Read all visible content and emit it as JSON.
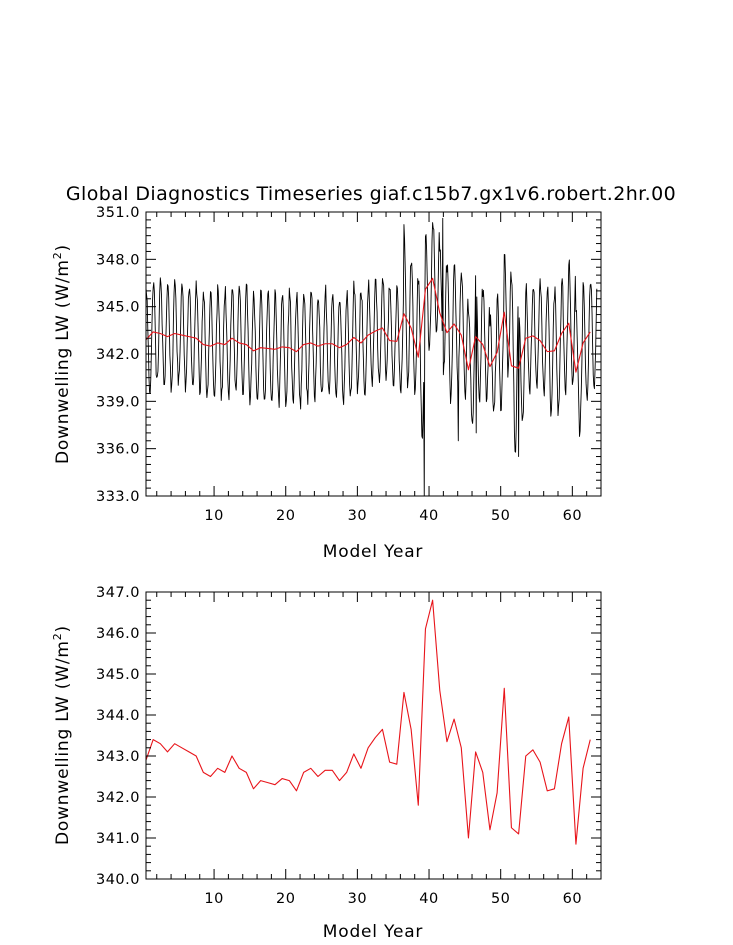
{
  "title": "Global Diagnostics Timeseries giaf.c15b7.gx1v6.robert.2hr.00",
  "colors": {
    "monthly": "#000000",
    "annual": "#e8141a",
    "axes": "#000000",
    "background": "#ffffff"
  },
  "chart_data": [
    {
      "type": "line",
      "title": "Global Diagnostics Timeseries giaf.c15b7.gx1v6.robert.2hr.00",
      "xlabel": "Model Year",
      "ylabel": "Downwelling LW (W/m²)",
      "ylabel_parts": {
        "main": "Downwelling LW (W/m",
        "sup": "2",
        "close": ")"
      },
      "xlim": [
        0.5,
        64
      ],
      "ylim": [
        333.0,
        351.0
      ],
      "x_tick_labels": [
        "10",
        "20",
        "30",
        "40",
        "50",
        "60"
      ],
      "y_tick_labels": [
        "333.0",
        "336.0",
        "339.0",
        "342.0",
        "345.0",
        "348.0",
        "351.0"
      ],
      "grid": false,
      "series": [
        {
          "color": "#000000",
          "style": "monthly",
          "x_start": 0.5,
          "x_step": 0.0833333,
          "annual_means": [
            342.9,
            343.4,
            343.3,
            343.1,
            343.3,
            343.2,
            343.1,
            343.0,
            342.6,
            342.5,
            342.7,
            342.6,
            343.0,
            342.7,
            342.6,
            342.2,
            342.4,
            342.35,
            342.3,
            342.45,
            342.4,
            342.15,
            342.6,
            342.7,
            342.5,
            342.65,
            342.65,
            342.4,
            342.6,
            343.05,
            342.7,
            343.2,
            343.45,
            343.65,
            342.85,
            342.8,
            344.55,
            343.65,
            341.8,
            346.1,
            346.8,
            344.6,
            343.35,
            343.9,
            343.2,
            341.0,
            343.1,
            342.6,
            341.2,
            342.1,
            344.65,
            341.25,
            341.1,
            343.0,
            343.15,
            342.85,
            342.15,
            342.2,
            343.3,
            343.95,
            340.85,
            342.7,
            343.4
          ],
          "seasonal_amplitude": [
            3.2,
            3.3,
            3.3,
            3.3,
            3.2,
            3.3,
            3.3,
            3.3,
            3.4,
            3.4,
            3.4,
            3.4,
            3.4,
            3.5,
            3.5,
            3.5,
            3.5,
            3.5,
            3.5,
            3.5,
            3.5,
            3.5,
            3.5,
            3.5,
            3.4,
            3.4,
            3.4,
            3.4,
            3.3,
            3.3,
            3.3,
            3.2,
            3.2,
            3.2,
            3.2,
            3.3,
            4.6,
            4.4,
            5.0,
            3.8,
            3.6,
            3.8,
            4.2,
            3.6,
            3.8,
            3.8,
            4.0,
            3.4,
            3.0,
            3.4,
            3.8,
            5.5,
            3.6,
            3.2,
            3.4,
            3.6,
            3.8,
            3.8,
            3.6,
            4.0,
            3.8,
            3.8,
            3.4
          ],
          "extremes": [
            [
              36.5,
              350.2
            ],
            [
              39.3,
              333.0
            ],
            [
              41.9,
              350.6
            ],
            [
              40.7,
              349.9
            ],
            [
              52.5,
              335.5
            ],
            [
              44.1,
              336.5
            ],
            [
              46.6,
              337.0
            ]
          ]
        },
        {
          "color": "#e8141a",
          "style": "annual",
          "x": [
            0.5,
            1.5,
            2.5,
            3.5,
            4.5,
            5.5,
            6.5,
            7.5,
            8.5,
            9.5,
            10.5,
            11.5,
            12.5,
            13.5,
            14.5,
            15.5,
            16.5,
            17.5,
            18.5,
            19.5,
            20.5,
            21.5,
            22.5,
            23.5,
            24.5,
            25.5,
            26.5,
            27.5,
            28.5,
            29.5,
            30.5,
            31.5,
            32.5,
            33.5,
            34.5,
            35.5,
            36.5,
            37.5,
            38.5,
            39.5,
            40.5,
            41.5,
            42.5,
            43.5,
            44.5,
            45.5,
            46.5,
            47.5,
            48.5,
            49.5,
            50.5,
            51.5,
            52.5,
            53.5,
            54.5,
            55.5,
            56.5,
            57.5,
            58.5,
            59.5,
            60.5,
            61.5,
            62.5
          ],
          "values": [
            342.9,
            343.4,
            343.3,
            343.1,
            343.3,
            343.2,
            343.1,
            343.0,
            342.6,
            342.5,
            342.7,
            342.6,
            343.0,
            342.7,
            342.6,
            342.2,
            342.4,
            342.35,
            342.3,
            342.45,
            342.4,
            342.15,
            342.6,
            342.7,
            342.5,
            342.65,
            342.65,
            342.4,
            342.6,
            343.05,
            342.7,
            343.2,
            343.45,
            343.65,
            342.85,
            342.8,
            344.55,
            343.65,
            341.8,
            346.1,
            346.8,
            344.6,
            343.35,
            343.9,
            343.2,
            341.0,
            343.1,
            342.6,
            341.2,
            342.1,
            344.65,
            341.25,
            341.1,
            343.0,
            343.15,
            342.85,
            342.15,
            342.2,
            343.3,
            343.95,
            340.85,
            342.7,
            343.4
          ]
        }
      ]
    },
    {
      "type": "line",
      "title": "",
      "xlabel": "Model Year",
      "ylabel": "Downwelling LW (W/m²)",
      "ylabel_parts": {
        "main": "Downwelling LW (W/m",
        "sup": "2",
        "close": ")"
      },
      "xlim": [
        0.5,
        64
      ],
      "ylim": [
        340.0,
        347.0
      ],
      "x_tick_labels": [
        "10",
        "20",
        "30",
        "40",
        "50",
        "60"
      ],
      "y_tick_labels": [
        "340.0",
        "341.0",
        "342.0",
        "343.0",
        "344.0",
        "345.0",
        "346.0",
        "347.0"
      ],
      "grid": false,
      "series": [
        {
          "color": "#e8141a",
          "style": "annual",
          "x": [
            0.5,
            1.5,
            2.5,
            3.5,
            4.5,
            5.5,
            6.5,
            7.5,
            8.5,
            9.5,
            10.5,
            11.5,
            12.5,
            13.5,
            14.5,
            15.5,
            16.5,
            17.5,
            18.5,
            19.5,
            20.5,
            21.5,
            22.5,
            23.5,
            24.5,
            25.5,
            26.5,
            27.5,
            28.5,
            29.5,
            30.5,
            31.5,
            32.5,
            33.5,
            34.5,
            35.5,
            36.5,
            37.5,
            38.5,
            39.5,
            40.5,
            41.5,
            42.5,
            43.5,
            44.5,
            45.5,
            46.5,
            47.5,
            48.5,
            49.5,
            50.5,
            51.5,
            52.5,
            53.5,
            54.5,
            55.5,
            56.5,
            57.5,
            58.5,
            59.5,
            60.5,
            61.5,
            62.5
          ],
          "values": [
            342.9,
            343.4,
            343.3,
            343.1,
            343.3,
            343.2,
            343.1,
            343.0,
            342.6,
            342.5,
            342.7,
            342.6,
            343.0,
            342.7,
            342.6,
            342.2,
            342.4,
            342.35,
            342.3,
            342.45,
            342.4,
            342.15,
            342.6,
            342.7,
            342.5,
            342.65,
            342.65,
            342.4,
            342.6,
            343.05,
            342.7,
            343.2,
            343.45,
            343.65,
            342.85,
            342.8,
            344.55,
            343.65,
            341.8,
            346.1,
            346.8,
            344.6,
            343.35,
            343.9,
            343.2,
            341.0,
            343.1,
            342.6,
            341.2,
            342.1,
            344.65,
            341.25,
            341.1,
            343.0,
            343.15,
            342.85,
            342.15,
            342.2,
            343.3,
            343.95,
            340.85,
            342.7,
            343.4
          ]
        }
      ]
    }
  ]
}
